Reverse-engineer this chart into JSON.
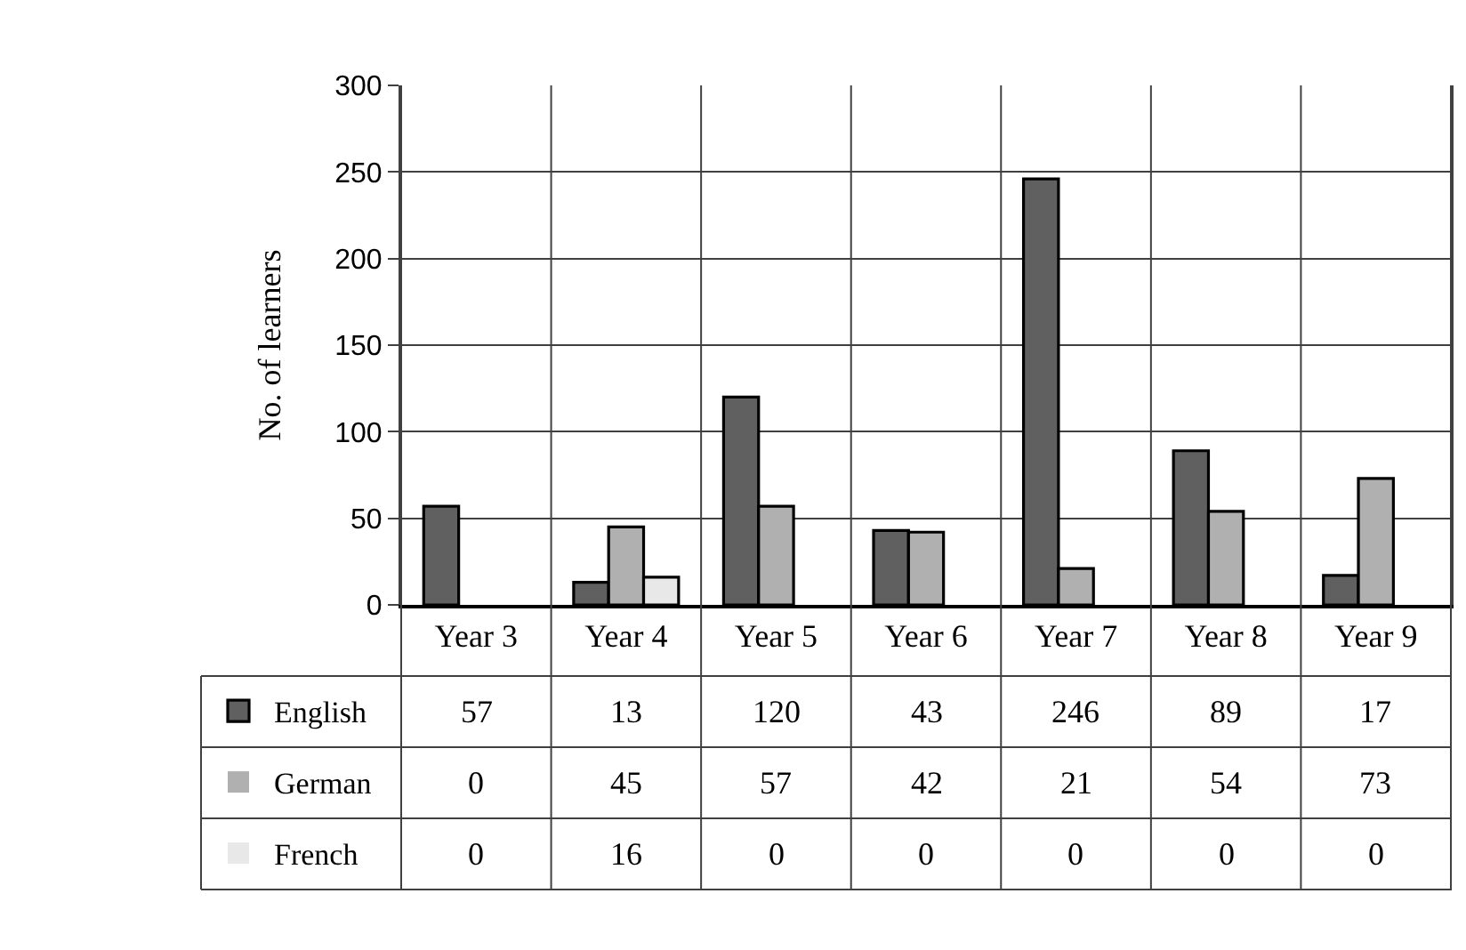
{
  "chart_data": {
    "type": "bar",
    "ylabel": "No. of learners",
    "categories": [
      "Year 3",
      "Year 4",
      "Year 5",
      "Year 6",
      "Year 7",
      "Year 8",
      "Year 9"
    ],
    "series": [
      {
        "name": "English",
        "color": "#606060",
        "values": [
          57,
          13,
          120,
          43,
          246,
          89,
          17
        ]
      },
      {
        "name": "German",
        "color": "#b0b0b0",
        "values": [
          0,
          45,
          57,
          42,
          21,
          54,
          73
        ]
      },
      {
        "name": "French",
        "color": "#e8e8e8",
        "values": [
          0,
          16,
          0,
          0,
          0,
          0,
          0
        ]
      }
    ],
    "ylim": [
      0,
      300
    ],
    "yticks": [
      0,
      50,
      100,
      150,
      200,
      250,
      300
    ],
    "grid": true,
    "legend": "bottom left",
    "data_labels": true
  }
}
